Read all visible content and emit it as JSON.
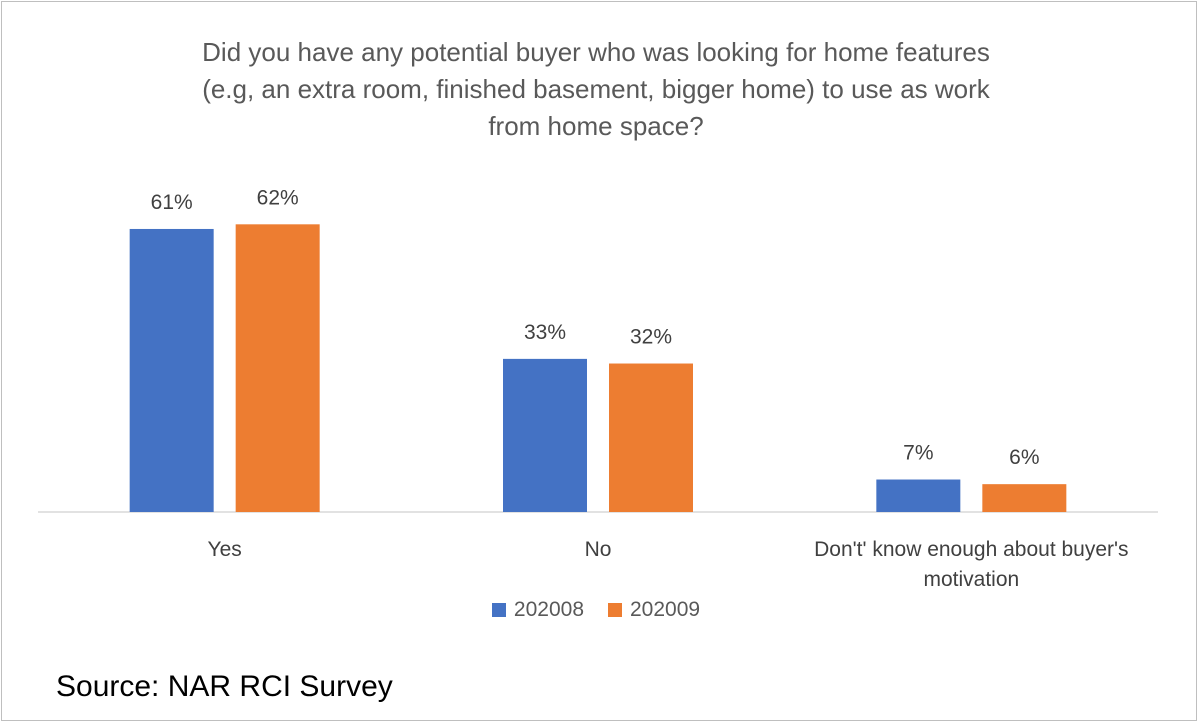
{
  "chart_data": {
    "type": "bar",
    "title": "Did you have any potential buyer who was looking for home features (e.g, an extra room, finished basement, bigger home) to use as work from home space?",
    "title_lines": [
      "Did you have any potential buyer who was looking for home features",
      "(e.g, an extra room, finished basement, bigger home) to use as work",
      "from home space?"
    ],
    "categories": [
      "Yes",
      "No",
      "Don't' know enough about buyer's motivation"
    ],
    "category_label_lines": [
      [
        "Yes"
      ],
      [
        "No"
      ],
      [
        "Don't' know enough about buyer's",
        "motivation"
      ]
    ],
    "series": [
      {
        "name": "202008",
        "color": "#4472c4",
        "values": [
          61,
          33,
          7
        ],
        "labels": [
          "61%",
          "33%",
          "7%"
        ]
      },
      {
        "name": "202009",
        "color": "#ed7d31",
        "values": [
          62,
          32,
          6
        ],
        "labels": [
          "62%",
          "32%",
          "6%"
        ]
      }
    ],
    "ylim": [
      0,
      65
    ],
    "grid": false,
    "legend_position": "bottom",
    "xlabel": "",
    "ylabel": ""
  },
  "source_note": "Source: NAR RCI Survey"
}
